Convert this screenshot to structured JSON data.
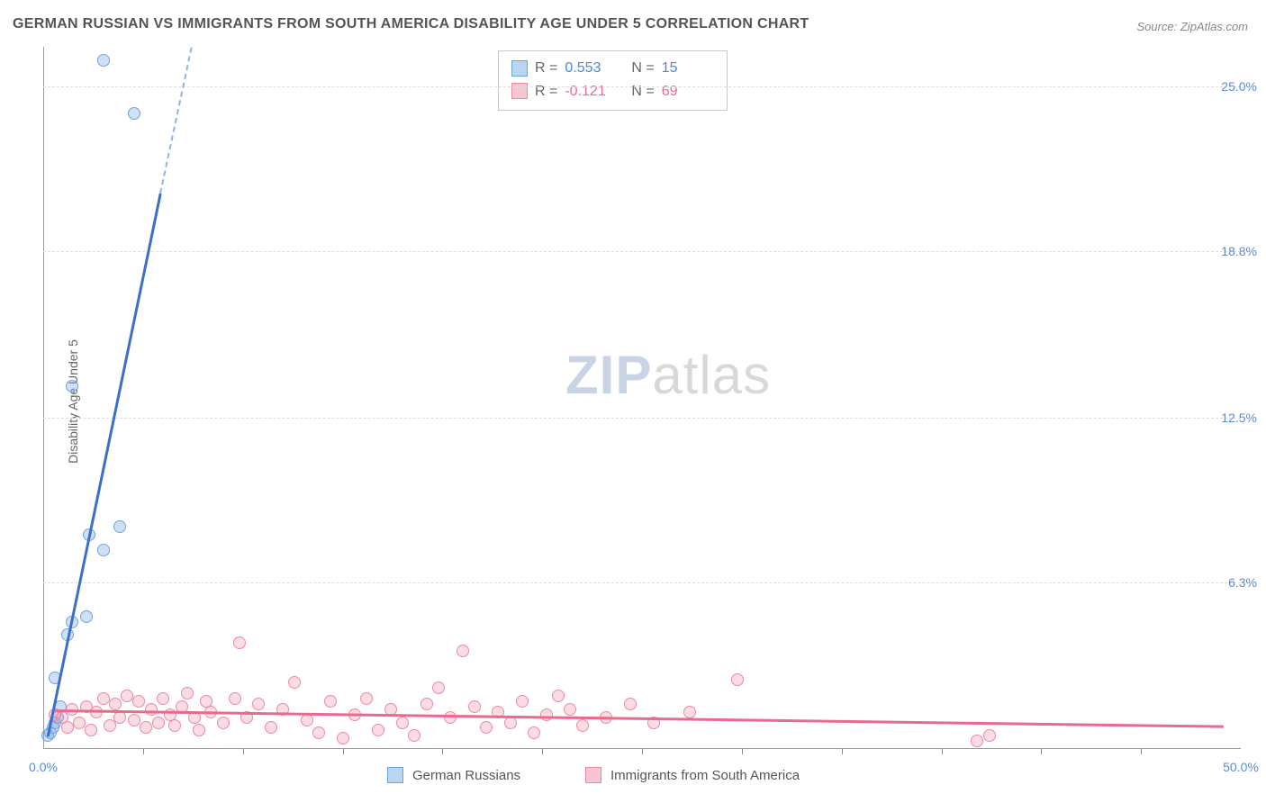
{
  "title": "GERMAN RUSSIAN VS IMMIGRANTS FROM SOUTH AMERICA DISABILITY AGE UNDER 5 CORRELATION CHART",
  "source": "Source: ZipAtlas.com",
  "ylabel": "Disability Age Under 5",
  "watermark": {
    "part1": "ZIP",
    "part2": "atlas"
  },
  "chart": {
    "type": "scatter",
    "xlim": [
      0,
      50.0
    ],
    "ylim": [
      0,
      26.5
    ],
    "background_color": "#ffffff",
    "grid_color": "#dddddd",
    "axis_color": "#999999",
    "yticks": [
      {
        "v": 6.3,
        "label": "6.3%"
      },
      {
        "v": 12.5,
        "label": "12.5%"
      },
      {
        "v": 18.8,
        "label": "18.8%"
      },
      {
        "v": 25.0,
        "label": "25.0%"
      }
    ],
    "xticks_major": [
      {
        "v": 0,
        "label": "0.0%"
      },
      {
        "v": 50,
        "label": "50.0%"
      }
    ],
    "xticks_minor": [
      4.17,
      8.33,
      12.5,
      16.67,
      20.83,
      25.0,
      29.17,
      33.33,
      37.5,
      41.67,
      45.83
    ],
    "series": [
      {
        "name": "German Russians",
        "color_fill": "rgba(120,170,225,0.35)",
        "color_stroke": "#6fa3dd",
        "marker_class": "pt-blue",
        "trend": {
          "x0": 0.2,
          "y0": 0.5,
          "x1": 4.9,
          "y1": 21.0,
          "dash_to_x": 6.2,
          "dash_to_y": 26.5,
          "color": "#3b6fc9"
        },
        "points": [
          [
            0.2,
            0.5
          ],
          [
            0.3,
            0.6
          ],
          [
            0.4,
            0.8
          ],
          [
            0.5,
            1.0
          ],
          [
            0.6,
            1.2
          ],
          [
            0.7,
            1.6
          ],
          [
            0.5,
            2.7
          ],
          [
            1.0,
            4.3
          ],
          [
            1.2,
            4.8
          ],
          [
            1.8,
            5.0
          ],
          [
            1.9,
            8.1
          ],
          [
            2.5,
            7.5
          ],
          [
            3.2,
            8.4
          ],
          [
            1.2,
            13.7
          ],
          [
            2.5,
            26.0
          ],
          [
            3.8,
            24.0
          ]
        ]
      },
      {
        "name": "Immigrants from South America",
        "color_fill": "rgba(240,140,165,0.30)",
        "color_stroke": "#ec89a3",
        "marker_class": "pt-pink",
        "trend": {
          "x0": 0.5,
          "y0": 1.5,
          "x1": 49.3,
          "y1": 0.9,
          "color": "#e86b8e"
        },
        "points": [
          [
            0.5,
            1.3
          ],
          [
            0.8,
            1.2
          ],
          [
            1.0,
            0.8
          ],
          [
            1.2,
            1.5
          ],
          [
            1.5,
            1.0
          ],
          [
            1.8,
            1.6
          ],
          [
            2.0,
            0.7
          ],
          [
            2.2,
            1.4
          ],
          [
            2.5,
            1.9
          ],
          [
            2.8,
            0.9
          ],
          [
            3.0,
            1.7
          ],
          [
            3.2,
            1.2
          ],
          [
            3.5,
            2.0
          ],
          [
            3.8,
            1.1
          ],
          [
            4.0,
            1.8
          ],
          [
            4.3,
            0.8
          ],
          [
            4.5,
            1.5
          ],
          [
            4.8,
            1.0
          ],
          [
            5.0,
            1.9
          ],
          [
            5.3,
            1.3
          ],
          [
            5.5,
            0.9
          ],
          [
            5.8,
            1.6
          ],
          [
            6.0,
            2.1
          ],
          [
            6.3,
            1.2
          ],
          [
            6.5,
            0.7
          ],
          [
            6.8,
            1.8
          ],
          [
            7.0,
            1.4
          ],
          [
            7.5,
            1.0
          ],
          [
            8.0,
            1.9
          ],
          [
            8.2,
            4.0
          ],
          [
            8.5,
            1.2
          ],
          [
            9.0,
            1.7
          ],
          [
            9.5,
            0.8
          ],
          [
            10.0,
            1.5
          ],
          [
            10.5,
            2.5
          ],
          [
            11.0,
            1.1
          ],
          [
            11.5,
            0.6
          ],
          [
            12.0,
            1.8
          ],
          [
            12.5,
            0.4
          ],
          [
            13.0,
            1.3
          ],
          [
            13.5,
            1.9
          ],
          [
            14.0,
            0.7
          ],
          [
            14.5,
            1.5
          ],
          [
            15.0,
            1.0
          ],
          [
            15.5,
            0.5
          ],
          [
            16.0,
            1.7
          ],
          [
            16.5,
            2.3
          ],
          [
            17.0,
            1.2
          ],
          [
            17.5,
            3.7
          ],
          [
            18.0,
            1.6
          ],
          [
            18.5,
            0.8
          ],
          [
            19.0,
            1.4
          ],
          [
            19.5,
            1.0
          ],
          [
            20.0,
            1.8
          ],
          [
            20.5,
            0.6
          ],
          [
            21.0,
            1.3
          ],
          [
            21.5,
            2.0
          ],
          [
            22.0,
            1.5
          ],
          [
            22.5,
            0.9
          ],
          [
            23.5,
            1.2
          ],
          [
            24.5,
            1.7
          ],
          [
            25.5,
            1.0
          ],
          [
            27.0,
            1.4
          ],
          [
            29.0,
            2.6
          ],
          [
            39.0,
            0.3
          ],
          [
            39.5,
            0.5
          ]
        ]
      }
    ]
  },
  "stats": {
    "rows": [
      {
        "swatch": "sw-blue",
        "r_label": "R =",
        "r_val": "0.553",
        "r_class": "stat-val-blue",
        "n_label": "N =",
        "n_val": "15"
      },
      {
        "swatch": "sw-pink",
        "r_label": "R =",
        "r_val": "-0.121",
        "r_class": "stat-val-pink",
        "n_label": "N =",
        "n_val": "69"
      }
    ]
  },
  "legend": [
    {
      "swatch": "sw-blue",
      "label": "German Russians"
    },
    {
      "swatch": "sw-pink",
      "label": "Immigrants from South America"
    }
  ]
}
